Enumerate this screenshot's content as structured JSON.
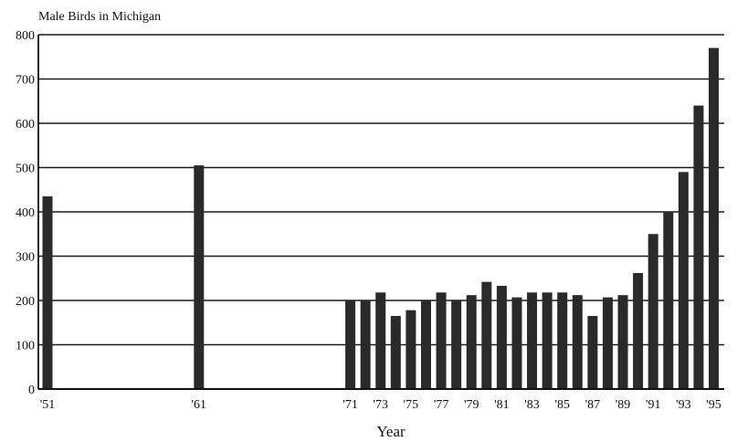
{
  "chart_data": {
    "type": "bar",
    "title": "",
    "ylabel": "Male Birds in Michigan",
    "xlabel": "Year",
    "ylim": [
      0,
      800
    ],
    "yticks": [
      0,
      100,
      200,
      300,
      400,
      500,
      600,
      700,
      800
    ],
    "grid": true,
    "bar_color": "#2a2a2a",
    "categories": [
      "'51",
      "'61",
      "'71",
      "'72",
      "'73",
      "'74",
      "'75",
      "'76",
      "'77",
      "'78",
      "'79",
      "'80",
      "'81",
      "'82",
      "'83",
      "'84",
      "'85",
      "'86",
      "'87",
      "'88",
      "'89",
      "'90",
      "'91",
      "'92",
      "'93",
      "'94",
      "'95"
    ],
    "year_numbers": [
      1951,
      1961,
      1971,
      1972,
      1973,
      1974,
      1975,
      1976,
      1977,
      1978,
      1979,
      1980,
      1981,
      1982,
      1983,
      1984,
      1985,
      1986,
      1987,
      1988,
      1989,
      1990,
      1991,
      1992,
      1993,
      1994,
      1995
    ],
    "values": [
      435,
      505,
      200,
      200,
      218,
      165,
      178,
      200,
      218,
      200,
      212,
      242,
      233,
      207,
      218,
      218,
      218,
      212,
      165,
      207,
      212,
      262,
      350,
      400,
      490,
      640,
      770
    ],
    "tick_categories": [
      "'51",
      "'61",
      "'71",
      "'73",
      "'75",
      "'77",
      "'79",
      "'81",
      "'83",
      "'85",
      "'87",
      "'89",
      "'91",
      "'93",
      "'95"
    ]
  }
}
